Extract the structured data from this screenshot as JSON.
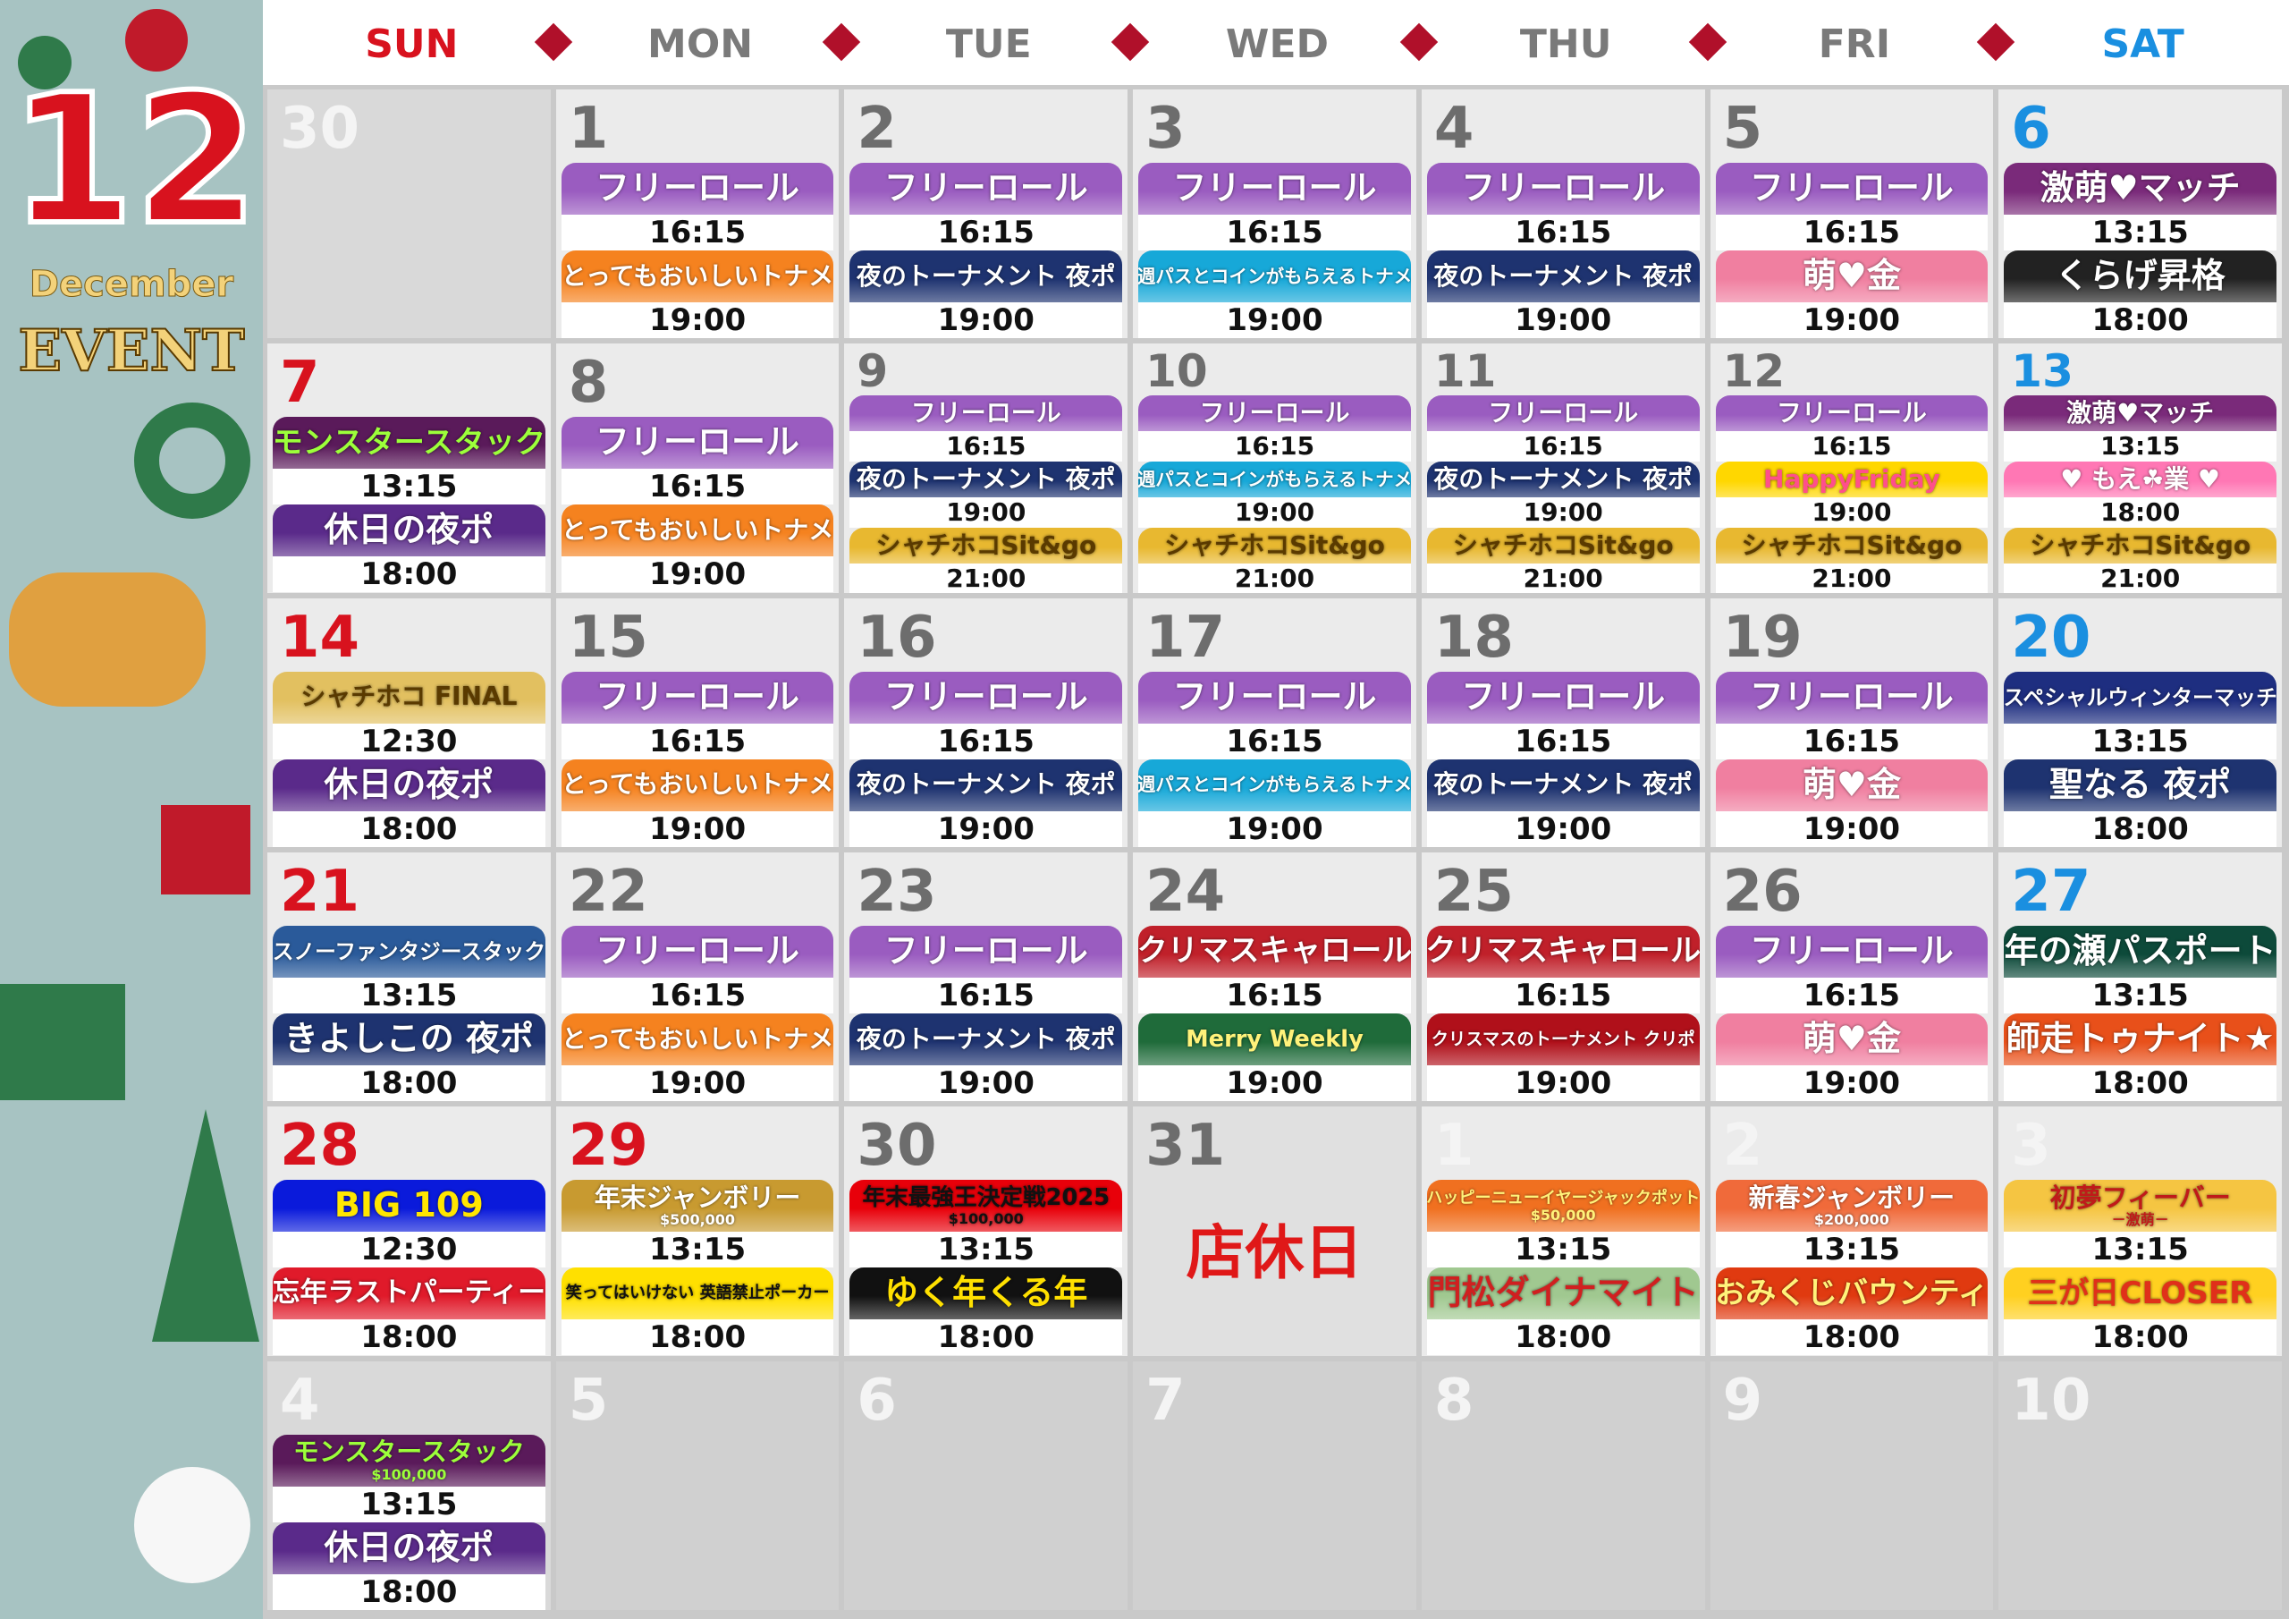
{
  "sidebar": {
    "month": "12",
    "month_name": "December",
    "label": "EVENT"
  },
  "weekdays": [
    {
      "label": "SUN",
      "color": "#d8121e"
    },
    {
      "label": "MON",
      "color": "#7a7a7a"
    },
    {
      "label": "TUE",
      "color": "#7a7a7a"
    },
    {
      "label": "WED",
      "color": "#7a7a7a"
    },
    {
      "label": "THU",
      "color": "#7a7a7a"
    },
    {
      "label": "FRI",
      "color": "#7a7a7a"
    },
    {
      "label": "SAT",
      "color": "#1a8fe0"
    }
  ],
  "weeks": [
    [
      {
        "day": 30,
        "day_color": "#f4f4f4",
        "bg": "#d9d9d9",
        "events": []
      },
      {
        "day": 1,
        "day_color": "#6d6d6d",
        "bg": "#ebebeb",
        "events": [
          {
            "label": "フリーロール",
            "time": "16:15",
            "color": "#9a5cc0"
          },
          {
            "label": "とってもおいしいトナメ",
            "time": "19:00",
            "color": "#f5821f"
          }
        ]
      },
      {
        "day": 2,
        "day_color": "#6d6d6d",
        "bg": "#ebebeb",
        "events": [
          {
            "label": "フリーロール",
            "time": "16:15",
            "color": "#9a5cc0"
          },
          {
            "label": "夜のトーナメント 夜ポ",
            "time": "19:00",
            "color": "#1e3370"
          }
        ]
      },
      {
        "day": 3,
        "day_color": "#6d6d6d",
        "bg": "#ebebeb",
        "events": [
          {
            "label": "フリーロール",
            "time": "16:15",
            "color": "#9a5cc0"
          },
          {
            "label": "週パスとコインがもらえるトナメ",
            "time": "19:00",
            "color": "#17a8d8"
          }
        ]
      },
      {
        "day": 4,
        "day_color": "#6d6d6d",
        "bg": "#ebebeb",
        "events": [
          {
            "label": "フリーロール",
            "time": "16:15",
            "color": "#9a5cc0"
          },
          {
            "label": "夜のトーナメント 夜ポ",
            "time": "19:00",
            "color": "#1e3370"
          }
        ]
      },
      {
        "day": 5,
        "day_color": "#6d6d6d",
        "bg": "#ebebeb",
        "events": [
          {
            "label": "フリーロール",
            "time": "16:15",
            "color": "#9a5cc0"
          },
          {
            "label": "萌♥金",
            "time": "19:00",
            "color": "#f07fa0"
          }
        ]
      },
      {
        "day": 6,
        "day_color": "#1a8fe0",
        "bg": "#ebebeb",
        "events": [
          {
            "label": "激萌♥マッチ",
            "time": "13:15",
            "color": "#7a2a7a"
          },
          {
            "label": "くらげ昇格",
            "time": "18:00",
            "color": "#222222"
          }
        ]
      }
    ],
    [
      {
        "day": 7,
        "day_color": "#d8121e",
        "bg": "#ebebeb",
        "events": [
          {
            "label": "モンスタースタック",
            "time": "13:15",
            "color": "#5a1a5a",
            "text": "#9cff3a"
          },
          {
            "label": "休日の夜ポ",
            "time": "18:00",
            "color": "#5a2a8a"
          }
        ]
      },
      {
        "day": 8,
        "day_color": "#6d6d6d",
        "bg": "#ebebeb",
        "events": [
          {
            "label": "フリーロール",
            "time": "16:15",
            "color": "#9a5cc0"
          },
          {
            "label": "とってもおいしいトナメ",
            "time": "19:00",
            "color": "#f5821f"
          }
        ]
      },
      {
        "day": 9,
        "day_color": "#6d6d6d",
        "bg": "#ebebeb",
        "events": [
          {
            "label": "フリーロール",
            "time": "16:15",
            "color": "#9a5cc0"
          },
          {
            "label": "夜のトーナメント 夜ポ",
            "time": "19:00",
            "color": "#1e3370"
          },
          {
            "label": "シャチホコSit&go",
            "time": "21:00",
            "color": "#e8b830",
            "text": "#5a3a00"
          }
        ]
      },
      {
        "day": 10,
        "day_color": "#6d6d6d",
        "bg": "#ebebeb",
        "events": [
          {
            "label": "フリーロール",
            "time": "16:15",
            "color": "#9a5cc0"
          },
          {
            "label": "週パスとコインがもらえるトナメ",
            "time": "19:00",
            "color": "#17a8d8"
          },
          {
            "label": "シャチホコSit&go",
            "time": "21:00",
            "color": "#e8b830",
            "text": "#5a3a00"
          }
        ]
      },
      {
        "day": 11,
        "day_color": "#6d6d6d",
        "bg": "#ebebeb",
        "events": [
          {
            "label": "フリーロール",
            "time": "16:15",
            "color": "#9a5cc0"
          },
          {
            "label": "夜のトーナメント 夜ポ",
            "time": "19:00",
            "color": "#1e3370"
          },
          {
            "label": "シャチホコSit&go",
            "time": "21:00",
            "color": "#e8b830",
            "text": "#5a3a00"
          }
        ]
      },
      {
        "day": 12,
        "day_color": "#6d6d6d",
        "bg": "#ebebeb",
        "events": [
          {
            "label": "フリーロール",
            "time": "16:15",
            "color": "#9a5cc0"
          },
          {
            "label": "HappyFriday",
            "time": "19:00",
            "color": "#ffd700",
            "text": "#ff4f8b"
          },
          {
            "label": "シャチホコSit&go",
            "time": "21:00",
            "color": "#e8b830",
            "text": "#5a3a00"
          }
        ]
      },
      {
        "day": 13,
        "day_color": "#1a8fe0",
        "bg": "#ebebeb",
        "events": [
          {
            "label": "激萌♥マッチ",
            "time": "13:15",
            "color": "#7a2a7a"
          },
          {
            "label": "♥ もえ☘業 ♥",
            "time": "18:00",
            "color": "#ff77b4"
          },
          {
            "label": "シャチホコSit&go",
            "time": "21:00",
            "color": "#e8b830",
            "text": "#5a3a00"
          }
        ]
      }
    ],
    [
      {
        "day": 14,
        "day_color": "#d8121e",
        "bg": "#ebebeb",
        "events": [
          {
            "label": "シャチホコ FINAL",
            "time": "12:30",
            "color": "#e2c060",
            "text": "#5a3a00"
          },
          {
            "label": "休日の夜ポ",
            "time": "18:00",
            "color": "#5a2a8a"
          }
        ]
      },
      {
        "day": 15,
        "day_color": "#6d6d6d",
        "bg": "#ebebeb",
        "events": [
          {
            "label": "フリーロール",
            "time": "16:15",
            "color": "#9a5cc0"
          },
          {
            "label": "とってもおいしいトナメ",
            "time": "19:00",
            "color": "#f5821f"
          }
        ]
      },
      {
        "day": 16,
        "day_color": "#6d6d6d",
        "bg": "#ebebeb",
        "events": [
          {
            "label": "フリーロール",
            "time": "16:15",
            "color": "#9a5cc0"
          },
          {
            "label": "夜のトーナメント 夜ポ",
            "time": "19:00",
            "color": "#1e3370"
          }
        ]
      },
      {
        "day": 17,
        "day_color": "#6d6d6d",
        "bg": "#ebebeb",
        "events": [
          {
            "label": "フリーロール",
            "time": "16:15",
            "color": "#9a5cc0"
          },
          {
            "label": "週パスとコインがもらえるトナメ",
            "time": "19:00",
            "color": "#17a8d8"
          }
        ]
      },
      {
        "day": 18,
        "day_color": "#6d6d6d",
        "bg": "#ebebeb",
        "events": [
          {
            "label": "フリーロール",
            "time": "16:15",
            "color": "#9a5cc0"
          },
          {
            "label": "夜のトーナメント 夜ポ",
            "time": "19:00",
            "color": "#1e3370"
          }
        ]
      },
      {
        "day": 19,
        "day_color": "#6d6d6d",
        "bg": "#ebebeb",
        "events": [
          {
            "label": "フリーロール",
            "time": "16:15",
            "color": "#9a5cc0"
          },
          {
            "label": "萌♥金",
            "time": "19:00",
            "color": "#f07fa0"
          }
        ]
      },
      {
        "day": 20,
        "day_color": "#1a8fe0",
        "bg": "#ebebeb",
        "events": [
          {
            "label": "スペシャルウィンターマッチ",
            "time": "13:15",
            "color": "#1e2e80"
          },
          {
            "label": "聖なる 夜ポ",
            "time": "18:00",
            "color": "#1e3370"
          }
        ]
      }
    ],
    [
      {
        "day": 21,
        "day_color": "#d8121e",
        "bg": "#ebebeb",
        "events": [
          {
            "label": "スノーファンタジースタック",
            "time": "13:15",
            "color": "#2a5a9a"
          },
          {
            "label": "きよしこの 夜ポ",
            "time": "18:00",
            "color": "#1e3370"
          }
        ]
      },
      {
        "day": 22,
        "day_color": "#6d6d6d",
        "bg": "#ebebeb",
        "events": [
          {
            "label": "フリーロール",
            "time": "16:15",
            "color": "#9a5cc0"
          },
          {
            "label": "とってもおいしいトナメ",
            "time": "19:00",
            "color": "#f5821f"
          }
        ]
      },
      {
        "day": 23,
        "day_color": "#6d6d6d",
        "bg": "#ebebeb",
        "events": [
          {
            "label": "フリーロール",
            "time": "16:15",
            "color": "#9a5cc0"
          },
          {
            "label": "夜のトーナメント 夜ポ",
            "time": "19:00",
            "color": "#1e3370"
          }
        ]
      },
      {
        "day": 24,
        "day_color": "#6d6d6d",
        "bg": "#ebebeb",
        "events": [
          {
            "label": "クリマスキャロール",
            "time": "16:15",
            "color": "#c0202a"
          },
          {
            "label": "Merry Weekly",
            "time": "19:00",
            "color": "#1f6b3a",
            "text": "#fff27a"
          }
        ]
      },
      {
        "day": 25,
        "day_color": "#6d6d6d",
        "bg": "#ebebeb",
        "events": [
          {
            "label": "クリマスキャロール",
            "time": "16:15",
            "color": "#c0202a"
          },
          {
            "label": "クリスマスのトーナメント クリポ",
            "time": "19:00",
            "color": "#b0101a"
          }
        ]
      },
      {
        "day": 26,
        "day_color": "#6d6d6d",
        "bg": "#ebebeb",
        "events": [
          {
            "label": "フリーロール",
            "time": "16:15",
            "color": "#9a5cc0"
          },
          {
            "label": "萌♥金",
            "time": "19:00",
            "color": "#f07fa0"
          }
        ]
      },
      {
        "day": 27,
        "day_color": "#1a8fe0",
        "bg": "#ebebeb",
        "events": [
          {
            "label": "年の瀬パスポート",
            "time": "13:15",
            "color": "#0d4a3a"
          },
          {
            "label": "師走トゥナイト★",
            "time": "18:00",
            "color": "#e8501a"
          }
        ]
      }
    ],
    [
      {
        "day": 28,
        "day_color": "#d8121e",
        "bg": "#ebebeb",
        "events": [
          {
            "label": "BIG 109",
            "time": "12:30",
            "color": "#0a1adb",
            "text": "#ffe600"
          },
          {
            "label": "忘年ラストパーティー",
            "time": "18:00",
            "color": "#e01a2a"
          }
        ]
      },
      {
        "day": 29,
        "day_color": "#d8121e",
        "bg": "#ebebeb",
        "events": [
          {
            "label": "年末ジャンボリー",
            "sub": "$500,000",
            "time": "13:15",
            "color": "#c89a30"
          },
          {
            "label": "笑ってはいけない 英語禁止ポーカー",
            "time": "18:00",
            "color": "#ffe000",
            "text": "#111111"
          }
        ]
      },
      {
        "day": 30,
        "day_color": "#6d6d6d",
        "bg": "#ebebeb",
        "events": [
          {
            "label": "年末最強王決定戦2025",
            "sub": "$100,000",
            "time": "13:15",
            "color": "#e8000a",
            "text": "#111111"
          },
          {
            "label": "ゆく年くる年",
            "time": "18:00",
            "color": "#111111",
            "text": "#ffe000"
          }
        ]
      },
      {
        "day": 31,
        "day_color": "#6d6d6d",
        "bg": "#e0e0e0",
        "events": [],
        "note": "店休日"
      },
      {
        "day": 1,
        "day_color": "#f4f4f4",
        "bg": "#ebebeb",
        "events": [
          {
            "label": "ハッピーニューイヤージャックポット",
            "sub": "$50,000",
            "time": "13:15",
            "color": "#f07020",
            "text": "#fff27a"
          },
          {
            "label": "門松ダイナマイト",
            "time": "18:00",
            "color": "#a0c890",
            "text": "#d02020"
          }
        ]
      },
      {
        "day": 2,
        "day_color": "#f4f4f4",
        "bg": "#ebebeb",
        "events": [
          {
            "label": "新春ジャンボリー",
            "sub": "$200,000",
            "time": "13:15",
            "color": "#f06a3a"
          },
          {
            "label": "おみくじバウンティ",
            "time": "18:00",
            "color": "#e03a10",
            "text": "#fff27a"
          }
        ]
      },
      {
        "day": 3,
        "day_color": "#f4f4f4",
        "bg": "#ebebeb",
        "events": [
          {
            "label": "初夢フィーバー",
            "sub": "－激萌－",
            "time": "13:15",
            "color": "#f5c542",
            "text": "#c01a1a"
          },
          {
            "label": "三が日CLOSER",
            "time": "18:00",
            "color": "#ffd020",
            "text": "#e0301a"
          }
        ]
      }
    ],
    [
      {
        "day": 4,
        "day_color": "#f4f4f4",
        "bg": "#d9d9d9",
        "events": [
          {
            "label": "モンスタースタック",
            "sub": "$100,000",
            "time": "13:15",
            "color": "#5a1a5a",
            "text": "#9cff3a"
          },
          {
            "label": "休日の夜ポ",
            "time": "18:00",
            "color": "#5a2a8a"
          }
        ]
      },
      {
        "day": 5,
        "day_color": "#f4f4f4",
        "bg": "#d0d0d0",
        "events": []
      },
      {
        "day": 6,
        "day_color": "#f4f4f4",
        "bg": "#d0d0d0",
        "events": []
      },
      {
        "day": 7,
        "day_color": "#f4f4f4",
        "bg": "#d0d0d0",
        "events": []
      },
      {
        "day": 8,
        "day_color": "#f4f4f4",
        "bg": "#d0d0d0",
        "events": []
      },
      {
        "day": 9,
        "day_color": "#f4f4f4",
        "bg": "#d0d0d0",
        "events": []
      },
      {
        "day": 10,
        "day_color": "#f4f4f4",
        "bg": "#d0d0d0",
        "events": []
      }
    ]
  ]
}
